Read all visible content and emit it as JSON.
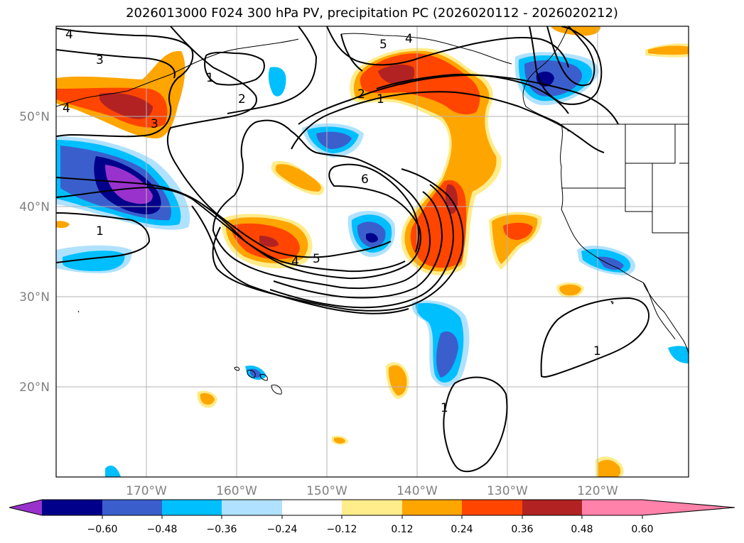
{
  "title": "2026013000 F024 300 hPa PV, precipitation PC (2026020112 - 2026020212)",
  "map": {
    "lat_ticks": [
      {
        "value": 50,
        "label": "50°N"
      },
      {
        "value": 40,
        "label": "40°N"
      },
      {
        "value": 30,
        "label": "30°N"
      },
      {
        "value": 20,
        "label": "20°N"
      }
    ],
    "lon_ticks": [
      {
        "value": -170,
        "label": "170°W"
      },
      {
        "value": -160,
        "label": "160°W"
      },
      {
        "value": -150,
        "label": "150°W"
      },
      {
        "value": -140,
        "label": "140°W"
      },
      {
        "value": -130,
        "label": "130°W"
      },
      {
        "value": -120,
        "label": "120°W"
      }
    ],
    "extent": {
      "lon_min": -180,
      "lon_max": -110,
      "lat_min": 10,
      "lat_max": 60
    },
    "contour_labels": [
      "4",
      "3",
      "3",
      "2",
      "2",
      "1",
      "1",
      "5",
      "4",
      "4",
      "5",
      "6",
      "1",
      "1",
      "1",
      "4"
    ]
  },
  "colorbar": {
    "colors": [
      "#9932cc",
      "#00008b",
      "#3a5fcd",
      "#00bfff",
      "#b0e2ff",
      "#ffffff",
      "#ffec8b",
      "#ffa500",
      "#ff4500",
      "#b22222",
      "#ff82ab"
    ],
    "tick_labels": [
      "−0.60",
      "−0.48",
      "−0.36",
      "−0.24",
      "−0.12",
      "0.12",
      "0.24",
      "0.36",
      "0.48",
      "0.60"
    ]
  }
}
